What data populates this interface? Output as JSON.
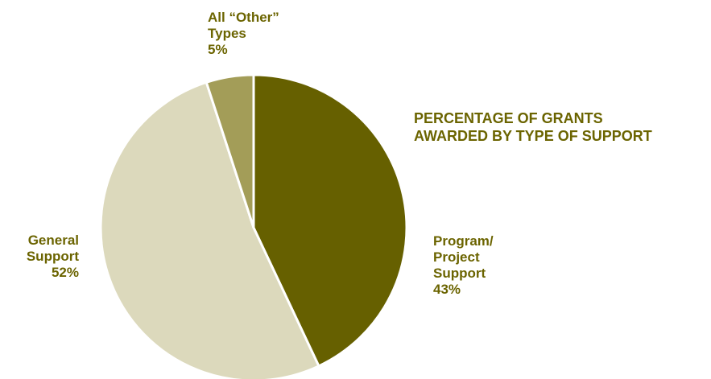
{
  "chart_data": {
    "type": "pie",
    "title_lines": [
      "PERCENTAGE OF GRANTS",
      "AWARDED BY TYPE OF SUPPORT"
    ],
    "slices": [
      {
        "name": "Program/ Project Support",
        "label_lines": [
          "Program/",
          "Project",
          "Support"
        ],
        "value": 43,
        "value_label": "43%",
        "color": "#666000"
      },
      {
        "name": "General Support",
        "label_lines": [
          "General",
          "Support"
        ],
        "value": 52,
        "value_label": "52%",
        "color": "#dcd9bc"
      },
      {
        "name": "All “Other” Types",
        "label_lines": [
          "All “Other”",
          "Types"
        ],
        "value": 5,
        "value_label": "5%",
        "color": "#a39d58"
      }
    ],
    "label_color": "#6b6400"
  }
}
